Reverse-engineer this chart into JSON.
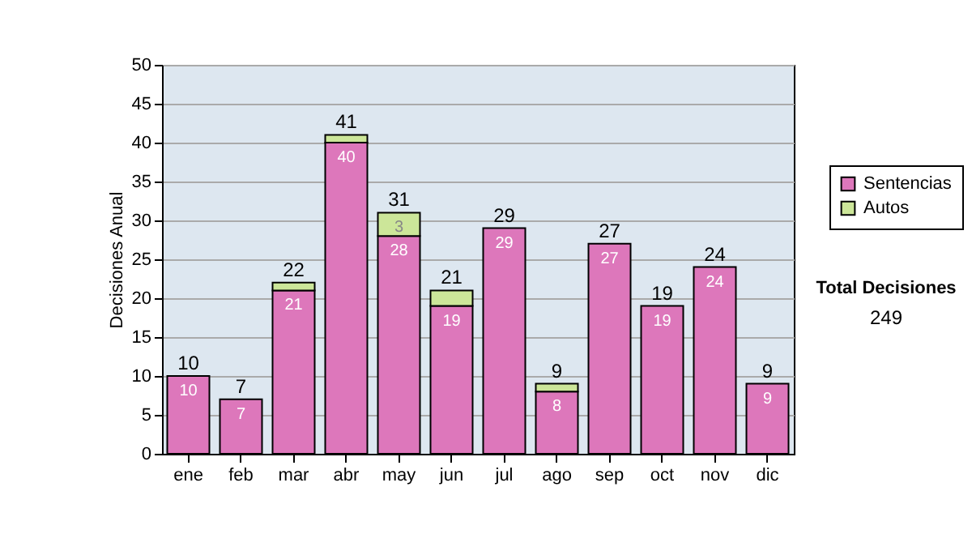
{
  "chart_data": {
    "type": "bar",
    "stacked": true,
    "ylabel": "Decisiones Anual",
    "categories": [
      "ene",
      "feb",
      "mar",
      "abr",
      "may",
      "jun",
      "jul",
      "ago",
      "sep",
      "oct",
      "nov",
      "dic"
    ],
    "series": [
      {
        "name": "Sentencias",
        "color": "#dd77bb",
        "values": [
          10,
          7,
          21,
          40,
          28,
          19,
          29,
          8,
          27,
          19,
          24,
          9
        ],
        "value_labels": [
          "10",
          "7",
          "21",
          "40",
          "28",
          "19",
          "29",
          "8",
          "27",
          "19",
          "24",
          "9"
        ]
      },
      {
        "name": "Autos",
        "color": "#cce699",
        "values": [
          null,
          null,
          1,
          1,
          3,
          2,
          null,
          1,
          null,
          null,
          null,
          null
        ],
        "value_labels": [
          null,
          null,
          null,
          null,
          "3",
          null,
          null,
          null,
          null,
          null,
          null,
          null
        ]
      }
    ],
    "totals": [
      "10",
      "7",
      "22",
      "41",
      "31",
      "21",
      "29",
      "9",
      "27",
      "19",
      "24",
      "9"
    ],
    "ylim": [
      0,
      50
    ],
    "yticks": [
      0,
      5,
      10,
      15,
      20,
      25,
      30,
      35,
      40,
      45,
      50
    ],
    "grid": "y",
    "legend": "right",
    "annotations": [
      "Total Decisiones",
      "249"
    ]
  }
}
